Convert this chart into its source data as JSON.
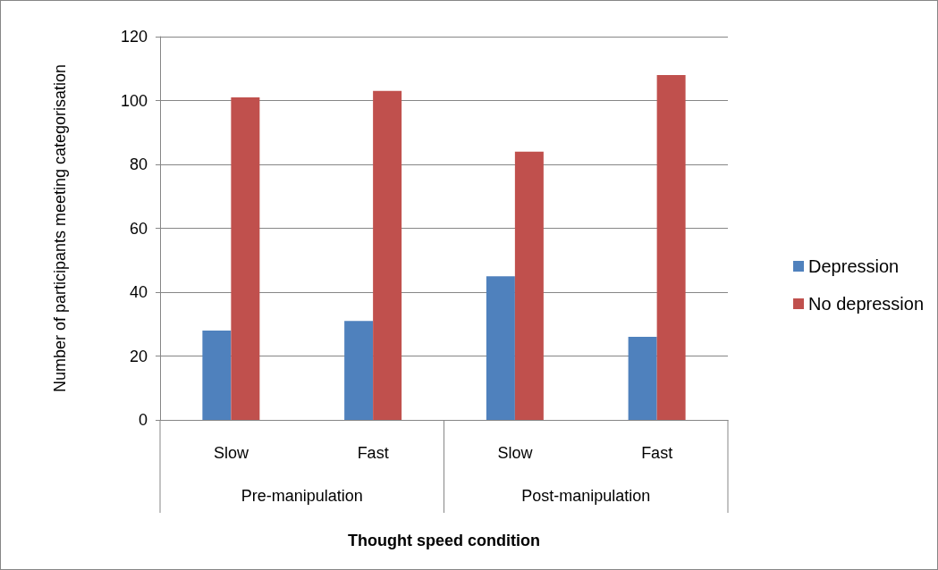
{
  "chart_data": {
    "type": "bar",
    "xlabel": "Thought speed condition",
    "ylabel": "Number of participants meeting categorisation",
    "categories": [
      "Slow",
      "Fast",
      "Slow",
      "Fast"
    ],
    "annotations": [
      "Pre-manipulation",
      "Post-manipulation"
    ],
    "series": [
      {
        "name": "Depression",
        "color": "#4f81bd",
        "values": [
          28,
          31,
          45,
          26
        ]
      },
      {
        "name": "No depression",
        "color": "#c0504d",
        "values": [
          101,
          103,
          84,
          108
        ]
      }
    ],
    "ylim": [
      0,
      120
    ],
    "yticks": [
      0,
      20,
      40,
      60,
      80,
      100,
      120
    ],
    "grid": "y",
    "legend": "right"
  }
}
